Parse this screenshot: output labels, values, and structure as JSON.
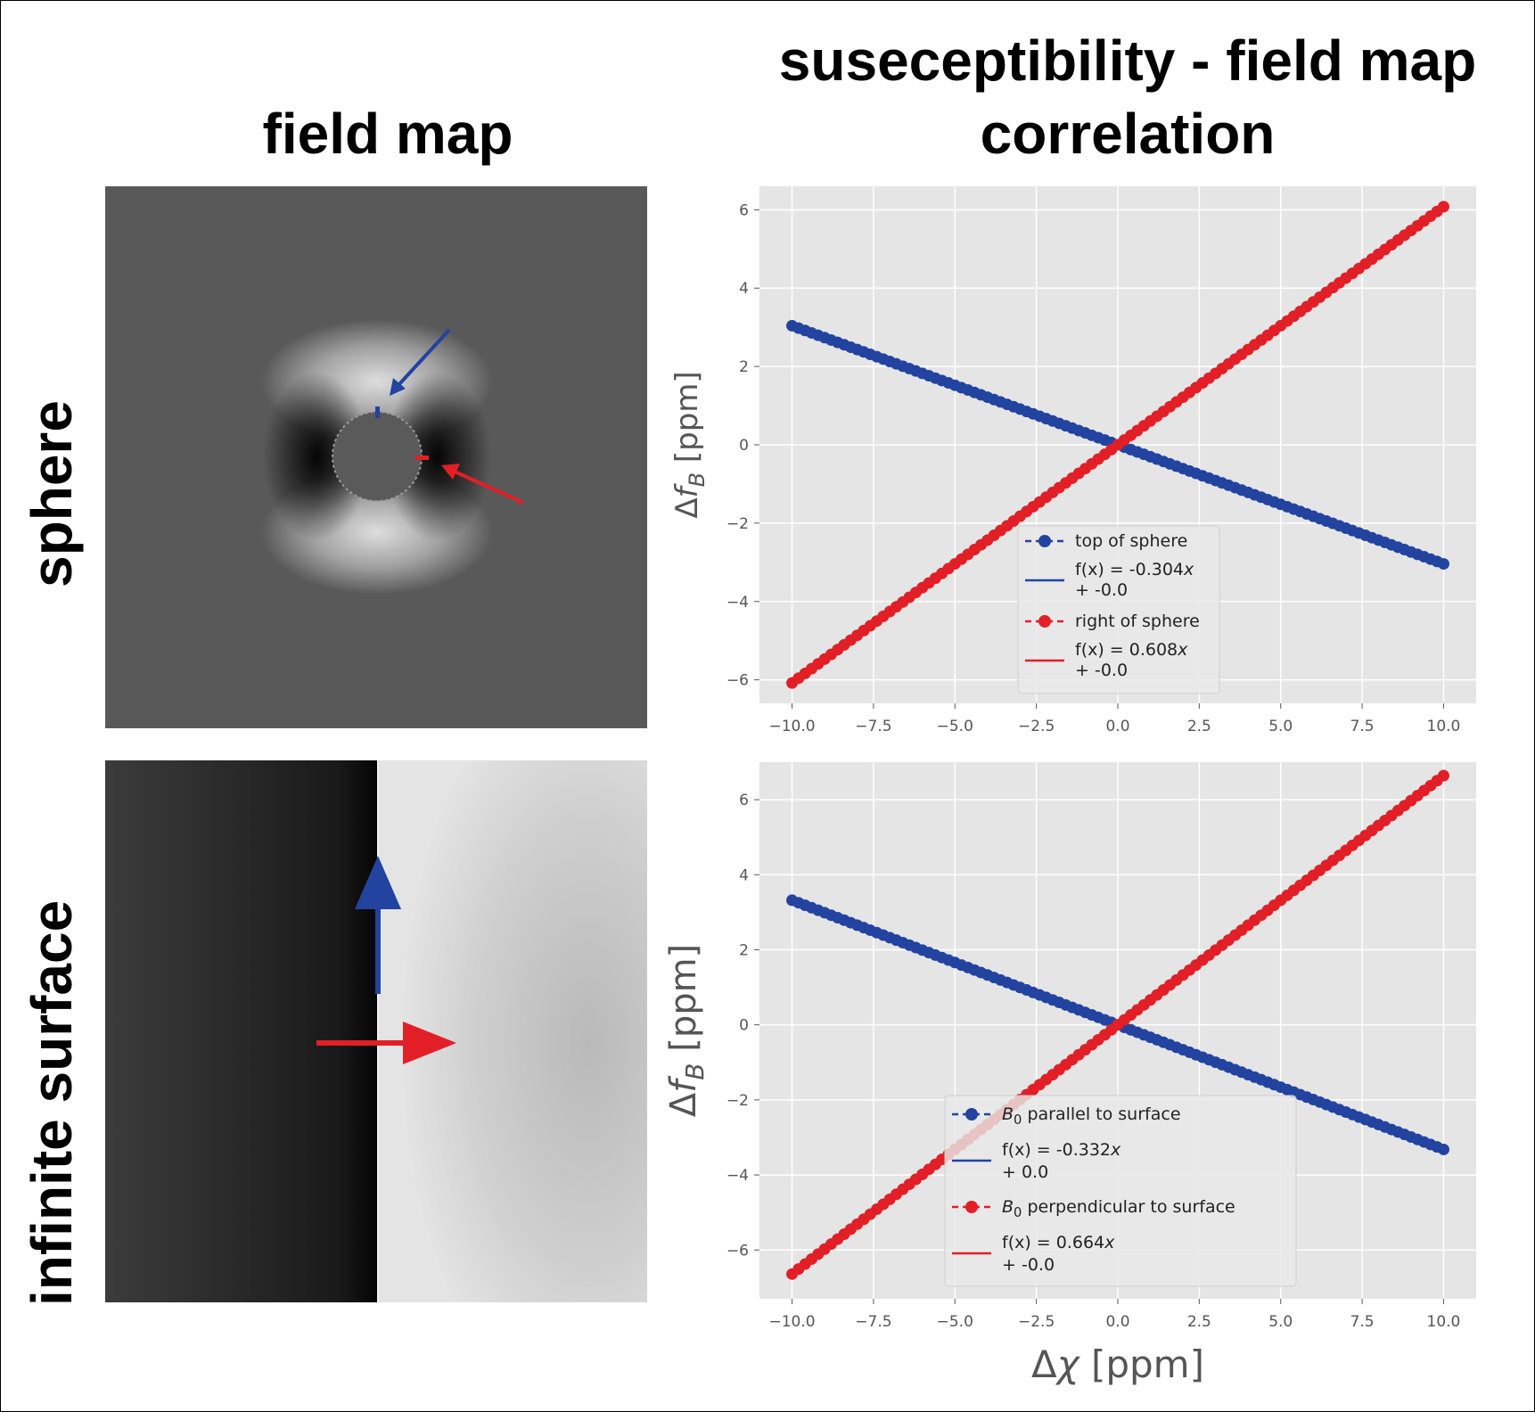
{
  "titles": {
    "field_map": "field map",
    "corr_line1": "suseceptibility - field map",
    "corr_line2": "correlation"
  },
  "row_labels": {
    "sphere": "sphere",
    "surface": "infinite surface"
  },
  "colors": {
    "blue": "#2243a0",
    "red": "#e21f26",
    "plot_bg": "#e5e5e5",
    "grid": "#ffffff"
  },
  "chart_data": [
    {
      "type": "line",
      "xlabel": "Δχ [ppm]",
      "ylabel": "Δf_B [ppm]",
      "xlim": [
        -11.0,
        11.0
      ],
      "ylim": [
        -6.6,
        6.6
      ],
      "xticks": [
        -10.0,
        -7.5,
        -5.0,
        -2.5,
        0.0,
        2.5,
        5.0,
        7.5,
        10.0
      ],
      "xtick_labels": [
        "−10.0",
        "−7.5",
        "−5.0",
        "−2.5",
        "0.0",
        "2.5",
        "5.0",
        "7.5",
        "10.0"
      ],
      "yticks": [
        -6,
        -4,
        -2,
        0,
        2,
        4,
        6
      ],
      "ytick_labels": [
        "−6",
        "−4",
        "−2",
        "0",
        "2",
        "4",
        "6"
      ],
      "legend_position": "lower-center",
      "series": [
        {
          "name": "top of sphere",
          "color": "blue",
          "slope": -0.304,
          "intercept": 0.0,
          "x_start": -10,
          "x_end": 10,
          "n_points": 101,
          "fit_label_1": "f(x) = -0.304",
          "fit_label_2": " + -0.0"
        },
        {
          "name": "right of sphere",
          "color": "red",
          "slope": 0.608,
          "intercept": 0.0,
          "x_start": -10,
          "x_end": 10,
          "n_points": 101,
          "fit_label_1": "f(x) = 0.608",
          "fit_label_2": " + -0.0"
        }
      ]
    },
    {
      "type": "line",
      "xlabel": "Δχ [ppm]",
      "ylabel": "Δf_B [ppm]",
      "xlim": [
        -11.0,
        11.0
      ],
      "ylim": [
        -7.3,
        7.0
      ],
      "xticks": [
        -10.0,
        -7.5,
        -5.0,
        -2.5,
        0.0,
        2.5,
        5.0,
        7.5,
        10.0
      ],
      "xtick_labels": [
        "−10.0",
        "−7.5",
        "−5.0",
        "−2.5",
        "0.0",
        "2.5",
        "5.0",
        "7.5",
        "10.0"
      ],
      "yticks": [
        -6,
        -4,
        -2,
        0,
        2,
        4,
        6
      ],
      "ytick_labels": [
        "−6",
        "−4",
        "−2",
        "0",
        "2",
        "4",
        "6"
      ],
      "legend_position": "lower-center",
      "series": [
        {
          "name": "B0 parallel to surface",
          "legend_sym": "B",
          "legend_sub": "0",
          "legend_rest": " parallel to surface",
          "color": "blue",
          "slope": -0.332,
          "intercept": 0.0,
          "x_start": -10,
          "x_end": 10,
          "n_points": 101,
          "fit_label_1": "f(x) = -0.332",
          "fit_label_2": " + 0.0"
        },
        {
          "name": "B0 perpendicular to surface",
          "legend_sym": "B",
          "legend_sub": "0",
          "legend_rest": " perpendicular to surface",
          "color": "red",
          "slope": 0.664,
          "intercept": 0.0,
          "x_start": -10,
          "x_end": 10,
          "n_points": 101,
          "fit_label_1": "f(x) = 0.664",
          "fit_label_2": " + -0.0"
        }
      ]
    }
  ]
}
